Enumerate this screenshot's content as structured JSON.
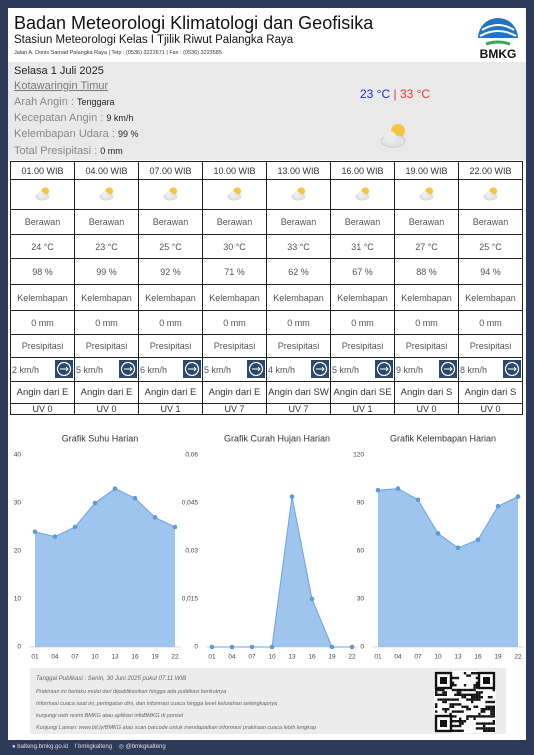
{
  "header": {
    "title": "Badan Meteorologi Klimatologi dan Geofisika",
    "subtitle": "Stasiun Meteorologi Kelas I Tjilik Riwut Palangka Raya",
    "address": "Jalan A. Donis Samad Palangka Raya | Telp : (0536) 3222671 | Fax : (0536) 3223585",
    "logo_text": "BMKG"
  },
  "info": {
    "date": "Selasa 1 Juli 2025",
    "region": "Kotawaringin Timur",
    "wind_direction_label": "Arah Angin :",
    "wind_direction": "Tenggara",
    "wind_speed_label": "Kecepatan Angin :",
    "wind_speed": "9 km/h",
    "humidity_label": "Kelembapan Udara :",
    "humidity": "99 %",
    "precip_label": "Total Presipitasi :",
    "precip": "0 mm",
    "temp_min": "23 °C",
    "temp_max": "| 33 °C"
  },
  "table": {
    "columns": [
      {
        "time": "01.00 WIB",
        "condition": "Berawan",
        "temp": "24 °C",
        "humidity": "98 %",
        "humidity_label": "Kelembapan",
        "precip": "0 mm",
        "precip_label": "Presipitasi",
        "wind_speed": "2 km/h",
        "wind_dir": "Angin dari  E",
        "uv": "UV 0"
      },
      {
        "time": "04.00 WIB",
        "condition": "Berawan",
        "temp": "23 °C",
        "humidity": "99 %",
        "humidity_label": "Kelembapan",
        "precip": "0 mm",
        "precip_label": "Presipitasi",
        "wind_speed": "5 km/h",
        "wind_dir": "Angin dari  E",
        "uv": "UV 0"
      },
      {
        "time": "07.00 WIB",
        "condition": "Berawan",
        "temp": "25 °C",
        "humidity": "92 %",
        "humidity_label": "Kelembapan",
        "precip": "0 mm",
        "precip_label": "Presipitasi",
        "wind_speed": "6 km/h",
        "wind_dir": "Angin dari  E",
        "uv": "UV 1"
      },
      {
        "time": "10.00 WIB",
        "condition": "Berawan",
        "temp": "30 °C",
        "humidity": "71 %",
        "humidity_label": "Kelembapan",
        "precip": "0 mm",
        "precip_label": "Presipitasi",
        "wind_speed": "5 km/h",
        "wind_dir": "Angin dari  E",
        "uv": "UV 7"
      },
      {
        "time": "13.00 WIB",
        "condition": "Berawan",
        "temp": "33 °C",
        "humidity": "62 %",
        "humidity_label": "Kelembapan",
        "precip": "0 mm",
        "precip_label": "Presipitasi",
        "wind_speed": "4 km/h",
        "wind_dir": "Angin dari  SW",
        "uv": "UV 7"
      },
      {
        "time": "16.00 WIB",
        "condition": "Berawan",
        "temp": "31 °C",
        "humidity": "67 %",
        "humidity_label": "Kelembapan",
        "precip": "0 mm",
        "precip_label": "Presipitasi",
        "wind_speed": "5 km/h",
        "wind_dir": "Angin dari  SE",
        "uv": "UV 1"
      },
      {
        "time": "19.00 WIB",
        "condition": "Berawan",
        "temp": "27 °C",
        "humidity": "88 %",
        "humidity_label": "Kelembapan",
        "precip": "0 mm",
        "precip_label": "Presipitasi",
        "wind_speed": "9 km/h",
        "wind_dir": "Angin dari  S",
        "uv": "UV 0"
      },
      {
        "time": "22.00 WIB",
        "condition": "Berawan",
        "temp": "25 °C",
        "humidity": "94 %",
        "humidity_label": "Kelembapan",
        "precip": "0 mm",
        "precip_label": "Presipitasi",
        "wind_speed": "8 km/h",
        "wind_dir": "Angin dari  S",
        "uv": "UV 0"
      }
    ]
  },
  "chart_data": [
    {
      "type": "area",
      "title": "Grafik Suhu Harian",
      "categories": [
        "01",
        "04",
        "07",
        "10",
        "13",
        "16",
        "19",
        "22"
      ],
      "values": [
        24,
        23,
        25,
        30,
        33,
        31,
        27,
        25
      ],
      "color": "#7fb1ea",
      "ylim": [
        0,
        40
      ],
      "yticks": [
        0,
        10,
        20,
        30,
        40
      ]
    },
    {
      "type": "area",
      "title": "Grafik Curah Hujan Harian",
      "categories": [
        "01",
        "04",
        "07",
        "10",
        "13",
        "16",
        "19",
        "22"
      ],
      "values": [
        0,
        0,
        0,
        0,
        0.047,
        0.015,
        0,
        0
      ],
      "color": "#7fb1ea",
      "ylim": [
        0,
        0.06
      ],
      "yticks": [
        0,
        {
          "value": 0.015,
          "label": "0,015"
        },
        {
          "value": 0.03,
          "label": "0,03"
        },
        {
          "value": 0.045,
          "label": "0,045"
        },
        {
          "value": 0.06,
          "label": "0,06"
        }
      ]
    },
    {
      "type": "area",
      "title": "Grafik Kelembapan Harian",
      "categories": [
        "01",
        "04",
        "07",
        "10",
        "13",
        "16",
        "19",
        "22"
      ],
      "values": [
        98,
        99,
        92,
        71,
        62,
        67,
        88,
        94
      ],
      "color": "#7fb1ea",
      "ylim": [
        0,
        120
      ],
      "yticks": [
        0,
        30,
        60,
        90,
        120
      ]
    }
  ],
  "footer": {
    "published": "Tanggal Publikasi : Senin, 30 Juni 2025 pukul 07.11 WIB",
    "notes": [
      "Prakiraan ini berlaku mulai dari dipublikasikan hingga ada publikasi berikutnya",
      "Informasi cuaca saat ini, peringatan dini, dan informasi cuaca hingga level kelurahan selengkapnya",
      "kunjungi web resmi BMKG atau aplikasi infoBMKG di ponsel",
      "Kunjungi Laman: www.bit.ly/BMKG atau scan barcode untuk mendapatkan informasi prakiraan cuaca lebih lengkap"
    ],
    "social": [
      "balteng.bmkg.go.id",
      "bmkgkalteng",
      "@bmkgkalteng"
    ]
  }
}
